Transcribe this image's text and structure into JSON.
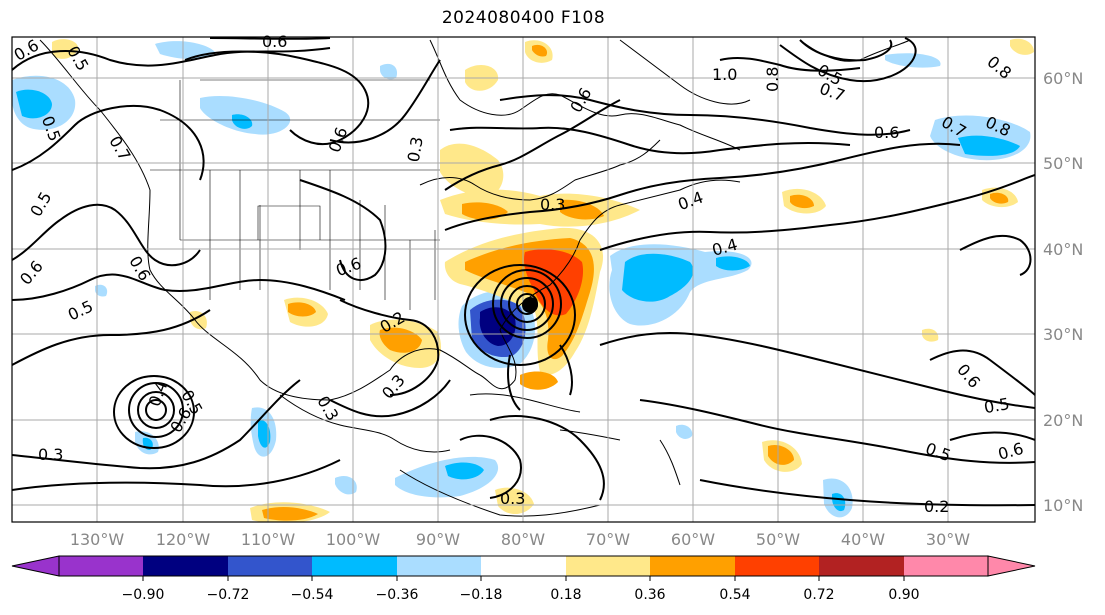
{
  "title": "2024080400 F108",
  "lon_labels": [
    "130°W",
    "120°W",
    "110°W",
    "100°W",
    "90°W",
    "80°W",
    "70°W",
    "60°W",
    "50°W",
    "40°W",
    "30°W"
  ],
  "lat_labels": [
    "60°N",
    "50°N",
    "40°N",
    "30°N",
    "20°N",
    "10°N"
  ],
  "contour_labels": [
    "0.6",
    "0.5",
    "0.6",
    "0.5",
    "0.7",
    "1.0",
    "0.8",
    "0.5",
    "0.7",
    "0.8",
    "0.6",
    "0.7",
    "0.8",
    "0.6",
    "0.6",
    "0.3",
    "0.4",
    "0.4",
    "0.5",
    "0.6",
    "0.5",
    "0.6",
    "0.5",
    "0.6",
    "0.4",
    "0.6",
    "0.3",
    "0.3",
    "0.2",
    "0.3",
    "0.3",
    "0.5",
    "0.6",
    "0.5",
    "0.2",
    "0.3",
    "0.6"
  ],
  "colorbar": {
    "ticks": [
      "−0.90",
      "−0.72",
      "−0.54",
      "−0.36",
      "−0.18",
      "0.18",
      "0.36",
      "0.54",
      "0.72",
      "0.90"
    ],
    "colors": [
      "#9933cc",
      "#000080",
      "#3355cc",
      "#00bbff",
      "#aaddff",
      "#ffffff",
      "#ffe88a",
      "#ffa000",
      "#ff4000",
      "#b22222",
      "#ff88aa"
    ]
  },
  "legend_colors": {
    "neg_light": "#aaddff",
    "neg_mid": "#00bbff",
    "neg_dark": "#3355cc",
    "neg_darker": "#000080",
    "pos_light": "#ffe88a",
    "pos_mid": "#ffa000",
    "pos_dark": "#ff4000"
  }
}
